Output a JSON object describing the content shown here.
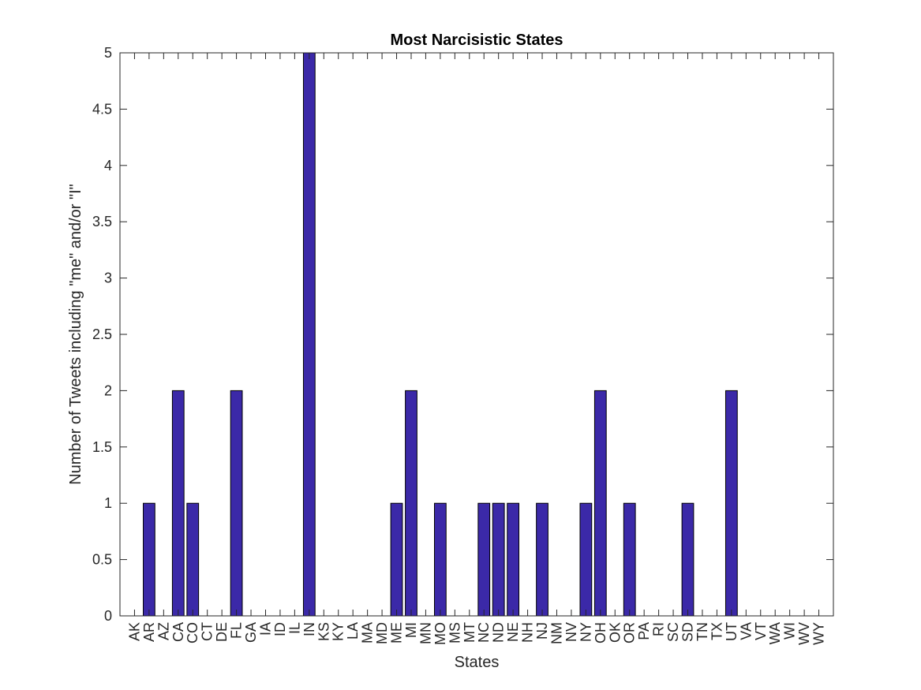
{
  "chart_data": {
    "type": "bar",
    "title": "Most Narcisistic States",
    "xlabel": "States",
    "ylabel": "Number of Tweets including \"me\" and/or \"I\"",
    "ylim": [
      0,
      5
    ],
    "yticks": [
      "0",
      "0.5",
      "1",
      "1.5",
      "2",
      "2.5",
      "3",
      "3.5",
      "4",
      "4.5",
      "5"
    ],
    "categories": [
      "AK",
      "AR",
      "AZ",
      "CA",
      "CO",
      "CT",
      "DE",
      "FL",
      "GA",
      "IA",
      "ID",
      "IL",
      "IN",
      "KS",
      "KY",
      "LA",
      "MA",
      "MD",
      "ME",
      "MI",
      "MN",
      "MO",
      "MS",
      "MT",
      "NC",
      "ND",
      "NE",
      "NH",
      "NJ",
      "NM",
      "NV",
      "NY",
      "OH",
      "OK",
      "OR",
      "PA",
      "RI",
      "SC",
      "SD",
      "TN",
      "TX",
      "UT",
      "VA",
      "VT",
      "WA",
      "WI",
      "WV",
      "WY"
    ],
    "values": [
      0,
      1,
      0,
      2,
      1,
      0,
      0,
      2,
      0,
      0,
      0,
      0,
      5,
      0,
      0,
      0,
      0,
      0,
      1,
      2,
      0,
      1,
      0,
      0,
      1,
      1,
      1,
      0,
      1,
      0,
      0,
      1,
      2,
      0,
      1,
      0,
      0,
      0,
      1,
      0,
      0,
      2,
      0,
      0,
      0,
      0,
      0,
      0
    ],
    "bar_color": "#3b29a8",
    "grid": false,
    "box": true
  }
}
